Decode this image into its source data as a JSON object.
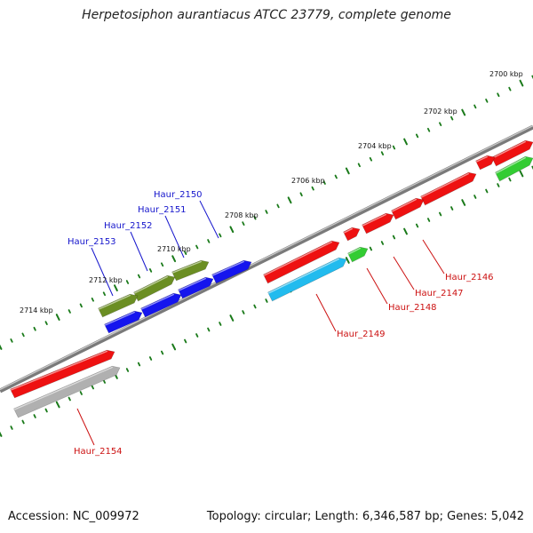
{
  "title": "Herpetosiphon aurantiacus ATCC 23779, complete genome",
  "footer": {
    "accession": "Accession: NC_009972",
    "info": "Topology: circular; Length: 6,346,587 bp; Genes: 5,042"
  },
  "colors": {
    "forward_gene": "#ee1111",
    "reverse_gene_blue": "#1515ee",
    "reverse_gene_olive": "#6b8e23",
    "cyan_gene": "#22bbee",
    "green_gene": "#33cc33",
    "grey_gene": "#b0b0b0",
    "backbone": "#808080",
    "ticks": "#1a7a1a"
  },
  "kbp_labels": [
    "2700 kbp",
    "2702 kbp",
    "2704 kbp",
    "2706 kbp",
    "2708 kbp",
    "2710 kbp",
    "2712 kbp",
    "2714 kbp"
  ],
  "gene_labels": [
    {
      "name": "Haur_2150",
      "color": "#1515cc"
    },
    {
      "name": "Haur_2151",
      "color": "#1515cc"
    },
    {
      "name": "Haur_2152",
      "color": "#1515cc"
    },
    {
      "name": "Haur_2153",
      "color": "#1515cc"
    },
    {
      "name": "Haur_2146",
      "color": "#cc1111"
    },
    {
      "name": "Haur_2147",
      "color": "#cc1111"
    },
    {
      "name": "Haur_2148",
      "color": "#cc1111"
    },
    {
      "name": "Haur_2149",
      "color": "#cc1111"
    },
    {
      "name": "Haur_2154",
      "color": "#cc1111"
    }
  ]
}
